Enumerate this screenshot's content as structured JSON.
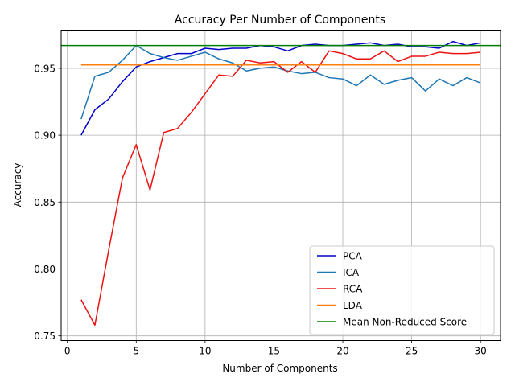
{
  "chart_data": {
    "type": "line",
    "title": "Accuracy Per Number of Components",
    "xlabel": "Number of Components",
    "ylabel": "Accuracy",
    "xlim": [
      -0.45,
      31.45
    ],
    "ylim": [
      0.7465,
      0.9785
    ],
    "xticks": [
      0,
      5,
      10,
      15,
      20,
      25,
      30
    ],
    "xtick_labels": [
      "0",
      "5",
      "10",
      "15",
      "20",
      "25",
      "30"
    ],
    "yticks": [
      0.75,
      0.8,
      0.85,
      0.9,
      0.95
    ],
    "ytick_labels": [
      "0.75",
      "0.80",
      "0.85",
      "0.90",
      "0.95"
    ],
    "grid": true,
    "legend_position": "lower-right",
    "x": [
      1,
      2,
      3,
      4,
      5,
      6,
      7,
      8,
      9,
      10,
      11,
      12,
      13,
      14,
      15,
      16,
      17,
      18,
      19,
      20,
      21,
      22,
      23,
      24,
      25,
      26,
      27,
      28,
      29,
      30
    ],
    "series": [
      {
        "name": "PCA",
        "color": "#0000cc",
        "values": [
          0.9,
          0.919,
          0.927,
          0.94,
          0.951,
          0.955,
          0.958,
          0.961,
          0.961,
          0.965,
          0.964,
          0.965,
          0.965,
          0.967,
          0.966,
          0.963,
          0.967,
          0.968,
          0.967,
          0.967,
          0.968,
          0.969,
          0.967,
          0.968,
          0.966,
          0.966,
          0.965,
          0.97,
          0.967,
          0.969
        ]
      },
      {
        "name": "ICA",
        "color": "#1f77b4",
        "values": [
          0.912,
          0.944,
          0.947,
          0.956,
          0.967,
          0.961,
          0.958,
          0.956,
          0.959,
          0.962,
          0.957,
          0.954,
          0.948,
          0.95,
          0.951,
          0.948,
          0.946,
          0.947,
          0.943,
          0.942,
          0.937,
          0.945,
          0.938,
          0.941,
          0.943,
          0.933,
          0.942,
          0.937,
          0.943,
          0.939
        ]
      },
      {
        "name": "RCA",
        "color": "#ee1111",
        "values": [
          0.777,
          0.758,
          0.814,
          0.868,
          0.893,
          0.859,
          0.902,
          0.905,
          0.917,
          0.931,
          0.945,
          0.944,
          0.956,
          0.954,
          0.955,
          0.947,
          0.955,
          0.947,
          0.963,
          0.961,
          0.957,
          0.957,
          0.963,
          0.955,
          0.959,
          0.959,
          0.962,
          0.961,
          0.961,
          0.962
        ]
      },
      {
        "name": "LDA",
        "color": "#ff7f0e",
        "values": [
          0.9525,
          0.9525,
          0.9525,
          0.9525,
          0.9525,
          0.9525,
          0.9525,
          0.9525,
          0.9525,
          0.9525,
          0.9525,
          0.9525,
          0.9525,
          0.9525,
          0.9525,
          0.9525,
          0.9525,
          0.9525,
          0.9525,
          0.9525,
          0.9525,
          0.9525,
          0.9525,
          0.9525,
          0.9525,
          0.9525,
          0.9525,
          0.9525,
          0.9525,
          0.9525
        ]
      }
    ],
    "reference_line": {
      "name": "Mean Non-Reduced Score",
      "color": "#008000",
      "value": 0.967
    }
  }
}
